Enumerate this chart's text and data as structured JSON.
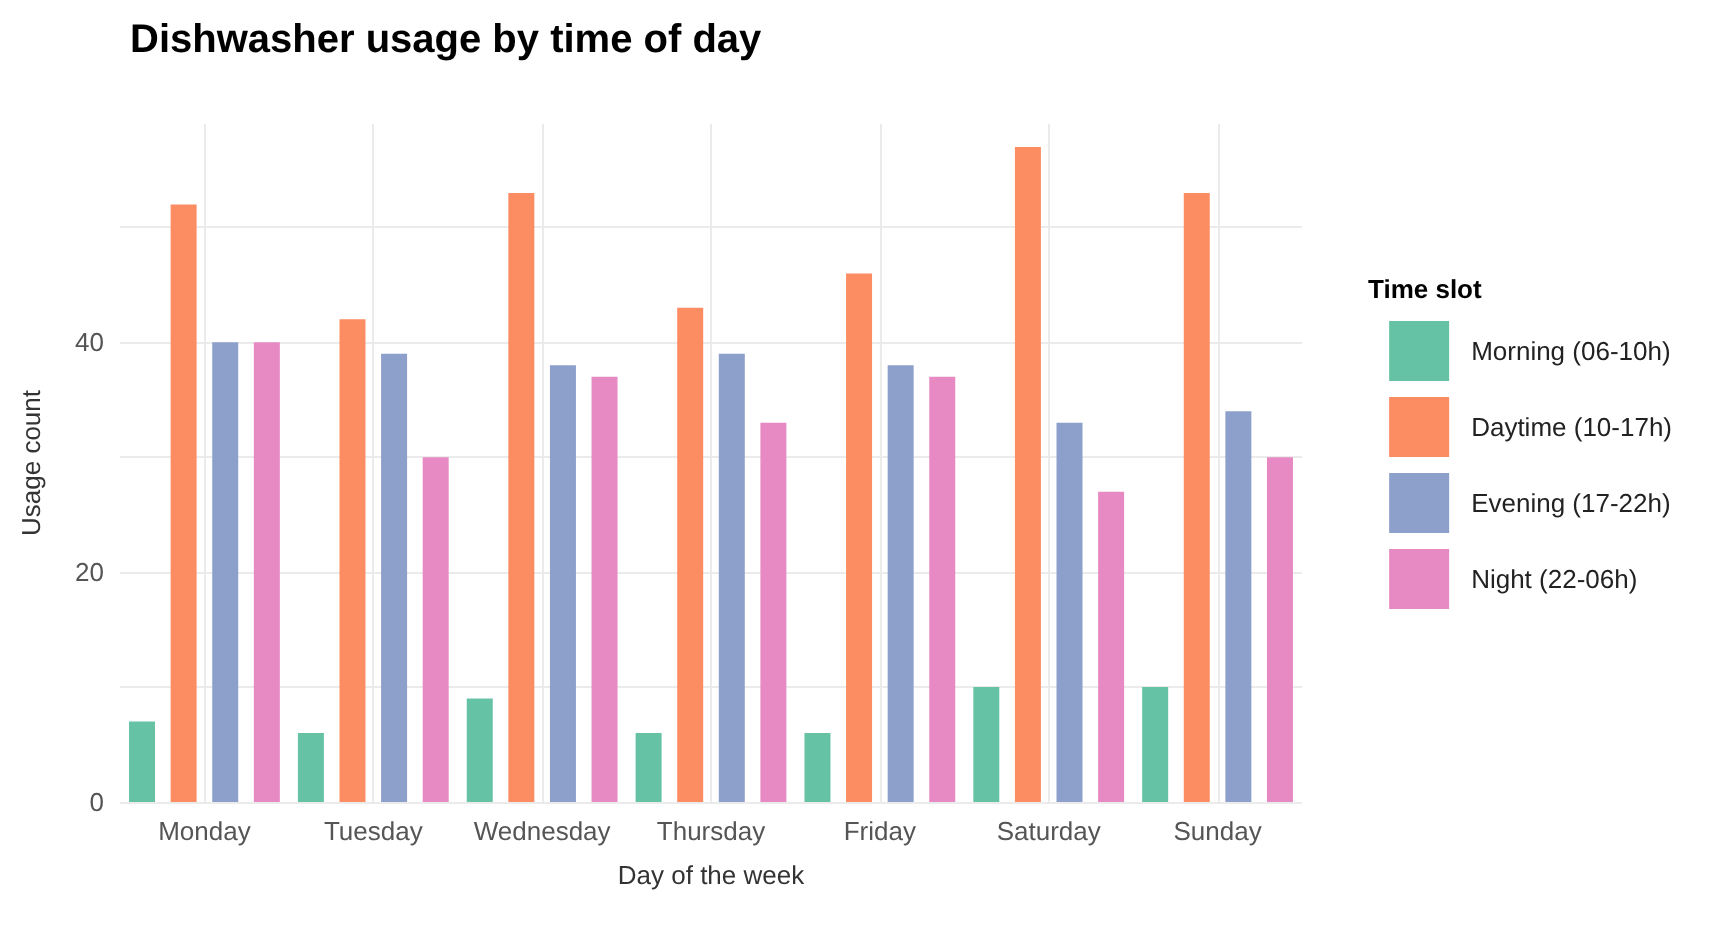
{
  "chart_data": {
    "type": "bar",
    "title": "Dishwasher usage by time of day",
    "xlabel": "Day of the week",
    "ylabel": "Usage count",
    "legend_title": "Time slot",
    "categories": [
      "Monday",
      "Tuesday",
      "Wednesday",
      "Thursday",
      "Friday",
      "Saturday",
      "Sunday"
    ],
    "series": [
      {
        "name": "Morning (06-10h)",
        "color": "#66c2a5",
        "values": [
          7,
          6,
          9,
          6,
          6,
          10,
          10
        ]
      },
      {
        "name": "Daytime (10-17h)",
        "color": "#fc8d62",
        "values": [
          52,
          42,
          53,
          43,
          46,
          57,
          53
        ]
      },
      {
        "name": "Evening (17-22h)",
        "color": "#8da0cb",
        "values": [
          40,
          39,
          38,
          39,
          38,
          33,
          34
        ]
      },
      {
        "name": "Night (22-06h)",
        "color": "#e78ac3",
        "values": [
          40,
          30,
          37,
          33,
          37,
          27,
          30
        ]
      }
    ],
    "ylim": [
      0,
      59
    ],
    "yticks": [
      0,
      {
        "value": 10,
        "label": null
      },
      20,
      {
        "value": 30,
        "label": null
      },
      40,
      {
        "value": 50,
        "label": null
      }
    ],
    "grid": true,
    "legend": "right"
  }
}
